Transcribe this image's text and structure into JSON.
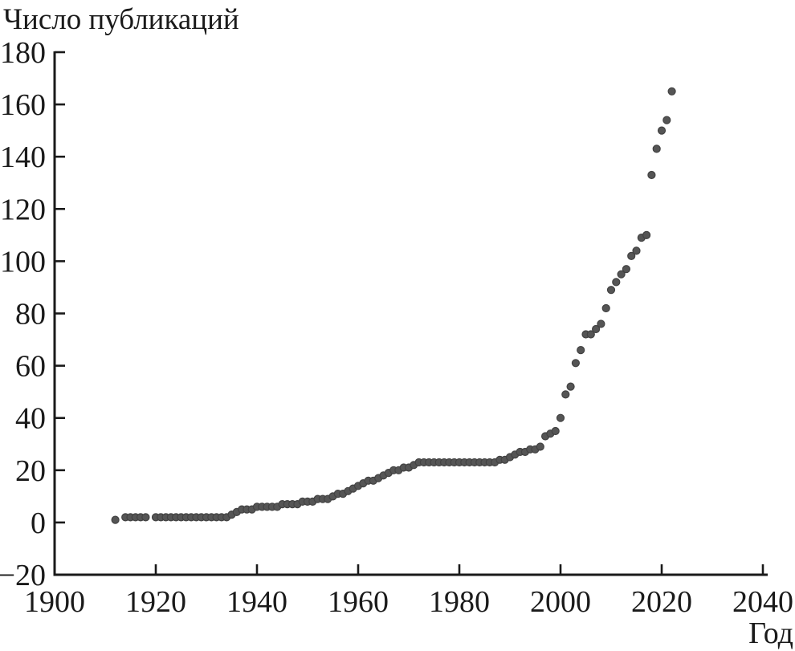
{
  "chart_data": {
    "type": "scatter",
    "title": "Число публикаций",
    "xlabel": "Год",
    "ylabel": "Число публикаций",
    "xlim": [
      1900,
      2040
    ],
    "ylim": [
      -20,
      180
    ],
    "x_ticks": [
      1900,
      1920,
      1940,
      1960,
      1980,
      2000,
      2020,
      2040
    ],
    "y_ticks": [
      -20,
      0,
      20,
      40,
      60,
      80,
      100,
      120,
      140,
      160,
      180
    ],
    "grid": false,
    "legend": "none",
    "marker": {
      "shape": "circle",
      "color": "#555555",
      "edge_color": "#424242",
      "radius_px": 4.5
    },
    "axis_color": "#1a1a1a",
    "points": [
      [
        1912,
        1
      ],
      [
        1914,
        2
      ],
      [
        1915,
        2
      ],
      [
        1916,
        2
      ],
      [
        1917,
        2
      ],
      [
        1918,
        2
      ],
      [
        1920,
        2
      ],
      [
        1921,
        2
      ],
      [
        1922,
        2
      ],
      [
        1923,
        2
      ],
      [
        1924,
        2
      ],
      [
        1925,
        2
      ],
      [
        1926,
        2
      ],
      [
        1927,
        2
      ],
      [
        1928,
        2
      ],
      [
        1929,
        2
      ],
      [
        1930,
        2
      ],
      [
        1931,
        2
      ],
      [
        1932,
        2
      ],
      [
        1933,
        2
      ],
      [
        1934,
        2
      ],
      [
        1935,
        3
      ],
      [
        1936,
        4
      ],
      [
        1937,
        5
      ],
      [
        1938,
        5
      ],
      [
        1939,
        5
      ],
      [
        1940,
        6
      ],
      [
        1941,
        6
      ],
      [
        1942,
        6
      ],
      [
        1943,
        6
      ],
      [
        1944,
        6
      ],
      [
        1945,
        7
      ],
      [
        1946,
        7
      ],
      [
        1947,
        7
      ],
      [
        1948,
        7
      ],
      [
        1949,
        8
      ],
      [
        1950,
        8
      ],
      [
        1951,
        8
      ],
      [
        1952,
        9
      ],
      [
        1953,
        9
      ],
      [
        1954,
        9
      ],
      [
        1955,
        10
      ],
      [
        1956,
        11
      ],
      [
        1957,
        11
      ],
      [
        1958,
        12
      ],
      [
        1959,
        13
      ],
      [
        1960,
        14
      ],
      [
        1961,
        15
      ],
      [
        1962,
        16
      ],
      [
        1963,
        16
      ],
      [
        1964,
        17
      ],
      [
        1965,
        18
      ],
      [
        1966,
        19
      ],
      [
        1967,
        20
      ],
      [
        1968,
        20
      ],
      [
        1969,
        21
      ],
      [
        1970,
        21
      ],
      [
        1971,
        22
      ],
      [
        1972,
        23
      ],
      [
        1973,
        23
      ],
      [
        1974,
        23
      ],
      [
        1975,
        23
      ],
      [
        1976,
        23
      ],
      [
        1977,
        23
      ],
      [
        1978,
        23
      ],
      [
        1979,
        23
      ],
      [
        1980,
        23
      ],
      [
        1981,
        23
      ],
      [
        1982,
        23
      ],
      [
        1983,
        23
      ],
      [
        1984,
        23
      ],
      [
        1985,
        23
      ],
      [
        1986,
        23
      ],
      [
        1987,
        23
      ],
      [
        1988,
        24
      ],
      [
        1989,
        24
      ],
      [
        1990,
        25
      ],
      [
        1991,
        26
      ],
      [
        1992,
        27
      ],
      [
        1993,
        27
      ],
      [
        1994,
        28
      ],
      [
        1995,
        28
      ],
      [
        1996,
        29
      ],
      [
        1997,
        33
      ],
      [
        1998,
        34
      ],
      [
        1999,
        35
      ],
      [
        2000,
        40
      ],
      [
        2001,
        49
      ],
      [
        2002,
        52
      ],
      [
        2003,
        61
      ],
      [
        2004,
        66
      ],
      [
        2005,
        72
      ],
      [
        2006,
        72
      ],
      [
        2007,
        74
      ],
      [
        2008,
        76
      ],
      [
        2009,
        82
      ],
      [
        2010,
        89
      ],
      [
        2011,
        92
      ],
      [
        2012,
        95
      ],
      [
        2013,
        97
      ],
      [
        2014,
        102
      ],
      [
        2015,
        104
      ],
      [
        2016,
        109
      ],
      [
        2017,
        110
      ],
      [
        2018,
        133
      ],
      [
        2019,
        143
      ],
      [
        2020,
        150
      ],
      [
        2021,
        154
      ],
      [
        2022,
        165
      ]
    ]
  }
}
